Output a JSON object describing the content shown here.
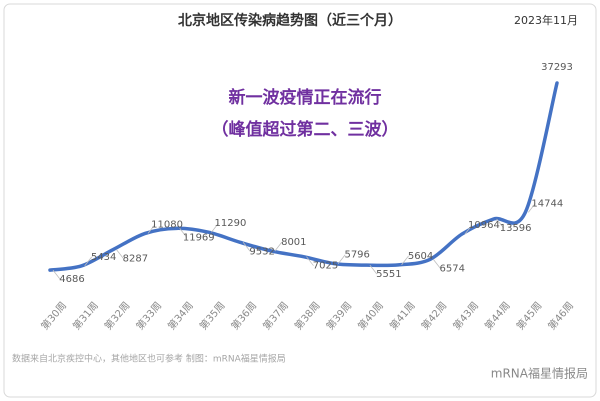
{
  "chart_data": {
    "type": "line",
    "title": "北京地区传染病趋势图（近三个月）",
    "date": "2023年11月",
    "annotations": [
      "新一波疫情正在流行",
      "（峰值超过第二、三波）"
    ],
    "footer": "数据来自北京疾控中心，其他地区也可参考  制图：mRNA福星情报局",
    "watermark": "mRNA福星情报局",
    "categories": [
      "第30周",
      "第31周",
      "第32周",
      "第33周",
      "第34周",
      "第35周",
      "第36周",
      "第37周",
      "第38周",
      "第39周",
      "第40周",
      "第41周",
      "第42周",
      "第43周",
      "第44周",
      "第45周",
      "第46周"
    ],
    "values": [
      4686,
      5434,
      8287,
      11080,
      11969,
      11290,
      9532,
      8001,
      7025,
      5796,
      5551,
      5604,
      6574,
      10964,
      13596,
      14744,
      37293
    ],
    "color": "#4472c4"
  }
}
